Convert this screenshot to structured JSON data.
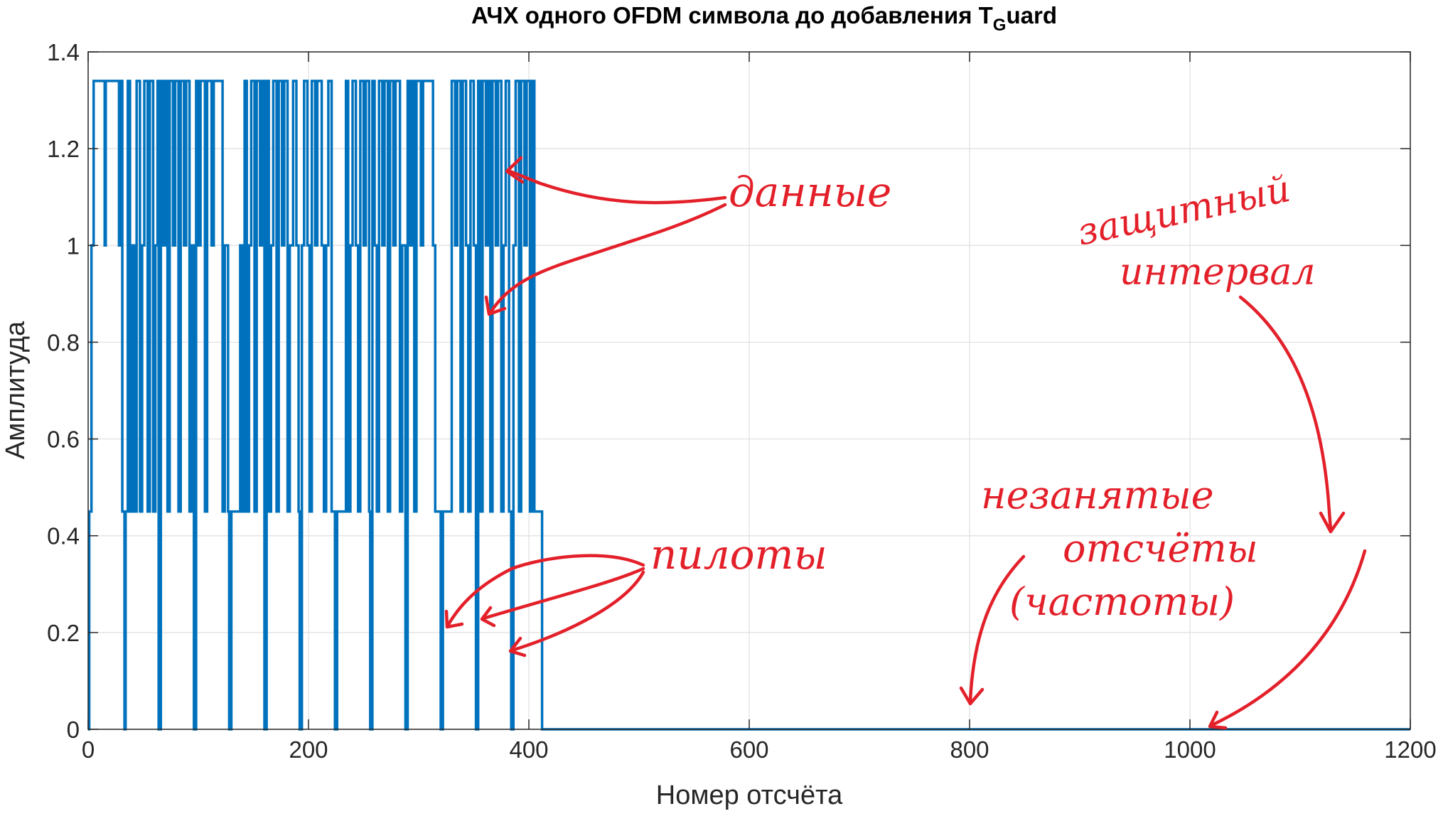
{
  "chart_data": {
    "type": "line",
    "title": "АЧХ одного OFDM символа до добавления T",
    "title_subscript": "G",
    "title_suffix": "uard",
    "xlabel": "Номер отсчёта",
    "ylabel": "Амплитуда",
    "xlim": [
      0,
      1200
    ],
    "ylim": [
      0,
      1.4
    ],
    "xticks": [
      0,
      200,
      400,
      600,
      800,
      1000,
      1200
    ],
    "xtick_labels": [
      "0",
      "200",
      "400",
      "600",
      "800",
      "1000",
      "1200"
    ],
    "yticks": [
      0,
      0.2,
      0.4,
      0.6,
      0.8,
      1.0,
      1.2,
      1.4
    ],
    "ytick_labels": [
      "0",
      "0.2",
      "0.4",
      "0.6",
      "0.8",
      "1",
      "1.2",
      "1.4"
    ],
    "grid": true,
    "line_color": "#0072BD",
    "levels": [
      0,
      0.4472,
      1.0,
      1.3416
    ],
    "active_range": [
      0,
      412
    ],
    "pilot_indices": [
      1,
      33,
      65,
      97,
      129,
      161,
      193,
      225,
      257,
      289,
      321,
      353,
      385
    ],
    "series": [
      {
        "points": [
          [
            0,
            0
          ],
          [
            1,
            0
          ],
          [
            1,
            0.45
          ],
          [
            3,
            0.45
          ],
          [
            3,
            1
          ],
          [
            5,
            1
          ],
          [
            5,
            1.34
          ],
          [
            12,
            1.34
          ],
          [
            12,
            1.34
          ],
          [
            15,
            1.34
          ],
          [
            15,
            1
          ],
          [
            16,
            1
          ],
          [
            16,
            1.34
          ],
          [
            28,
            1.34
          ],
          [
            28,
            1
          ],
          [
            30,
            1
          ],
          [
            30,
            1.34
          ],
          [
            31,
            1.34
          ],
          [
            31,
            0.45
          ],
          [
            33,
            0.45
          ],
          [
            33,
            0
          ],
          [
            34,
            0
          ],
          [
            34,
            0.45
          ],
          [
            36,
            0.45
          ],
          [
            36,
            1.34
          ],
          [
            38,
            1.34
          ],
          [
            38,
            0.45
          ],
          [
            40,
            0.45
          ],
          [
            40,
            1
          ],
          [
            42,
            1
          ],
          [
            42,
            0.45
          ],
          [
            44,
            0.45
          ],
          [
            44,
            1.34
          ],
          [
            47,
            1.34
          ],
          [
            47,
            0.45
          ],
          [
            49,
            0.45
          ],
          [
            49,
            1
          ],
          [
            51,
            1
          ],
          [
            51,
            1.34
          ],
          [
            54,
            1.34
          ],
          [
            54,
            0.45
          ],
          [
            56,
            0.45
          ],
          [
            56,
            1.34
          ],
          [
            59,
            1.34
          ],
          [
            59,
            0.45
          ],
          [
            61,
            0.45
          ],
          [
            61,
            1
          ],
          [
            63,
            1
          ],
          [
            63,
            1.34
          ],
          [
            64,
            1.34
          ],
          [
            64,
            0
          ],
          [
            66,
            0
          ],
          [
            66,
            1.34
          ],
          [
            68,
            1.34
          ],
          [
            68,
            1
          ],
          [
            70,
            1
          ],
          [
            70,
            1.34
          ],
          [
            72,
            1.34
          ],
          [
            72,
            0.45
          ],
          [
            74,
            0.45
          ],
          [
            74,
            1.34
          ],
          [
            77,
            1.34
          ],
          [
            77,
            1
          ],
          [
            79,
            1
          ],
          [
            79,
            1.34
          ],
          [
            82,
            1.34
          ],
          [
            82,
            0.45
          ],
          [
            84,
            0.45
          ],
          [
            84,
            1.34
          ],
          [
            87,
            1.34
          ],
          [
            87,
            1
          ],
          [
            89,
            1
          ],
          [
            89,
            1.34
          ],
          [
            92,
            1.34
          ],
          [
            92,
            0.45
          ],
          [
            94,
            0.45
          ],
          [
            94,
            1
          ],
          [
            96,
            1
          ],
          [
            96,
            0
          ],
          [
            98,
            0
          ],
          [
            98,
            1.34
          ],
          [
            100,
            1.34
          ],
          [
            100,
            1
          ],
          [
            102,
            1
          ],
          [
            102,
            1.34
          ],
          [
            106,
            1.34
          ],
          [
            106,
            0.45
          ],
          [
            108,
            0.45
          ],
          [
            108,
            1.34
          ],
          [
            112,
            1.34
          ],
          [
            112,
            1
          ],
          [
            114,
            1
          ],
          [
            114,
            1.34
          ],
          [
            118,
            1.34
          ],
          [
            118,
            1.34
          ],
          [
            122,
            1.34
          ],
          [
            122,
            0.45
          ],
          [
            124,
            0.45
          ],
          [
            124,
            1
          ],
          [
            127,
            1
          ],
          [
            127,
            0.45
          ],
          [
            128,
            0.45
          ],
          [
            128,
            0
          ],
          [
            130,
            0
          ],
          [
            130,
            0.45
          ],
          [
            138,
            0.45
          ],
          [
            138,
            1
          ],
          [
            140,
            1
          ],
          [
            140,
            0.45
          ],
          [
            142,
            0.45
          ],
          [
            142,
            1.34
          ],
          [
            144,
            1.34
          ],
          [
            144,
            0.45
          ],
          [
            146,
            0.45
          ],
          [
            146,
            1
          ],
          [
            148,
            1
          ],
          [
            148,
            1.34
          ],
          [
            151,
            1.34
          ],
          [
            151,
            0.45
          ],
          [
            153,
            0.45
          ],
          [
            153,
            1.34
          ],
          [
            156,
            1.34
          ],
          [
            156,
            1
          ],
          [
            158,
            1
          ],
          [
            158,
            1.34
          ],
          [
            160,
            1.34
          ],
          [
            160,
            0
          ],
          [
            162,
            0
          ],
          [
            162,
            1.34
          ],
          [
            164,
            1.34
          ],
          [
            164,
            0.45
          ],
          [
            166,
            0.45
          ],
          [
            166,
            1
          ],
          [
            168,
            1
          ],
          [
            168,
            1.34
          ],
          [
            171,
            1.34
          ],
          [
            171,
            0.45
          ],
          [
            173,
            0.45
          ],
          [
            173,
            1.34
          ],
          [
            176,
            1.34
          ],
          [
            176,
            1
          ],
          [
            178,
            1
          ],
          [
            178,
            1.34
          ],
          [
            181,
            1.34
          ],
          [
            181,
            0.45
          ],
          [
            183,
            0.45
          ],
          [
            183,
            1
          ],
          [
            186,
            1
          ],
          [
            186,
            1.34
          ],
          [
            189,
            1.34
          ],
          [
            189,
            1
          ],
          [
            191,
            1
          ],
          [
            191,
            0.45
          ],
          [
            192,
            0.45
          ],
          [
            192,
            0
          ],
          [
            194,
            0
          ],
          [
            194,
            1
          ],
          [
            196,
            1
          ],
          [
            196,
            1.34
          ],
          [
            199,
            1.34
          ],
          [
            199,
            1
          ],
          [
            201,
            1
          ],
          [
            201,
            0.45
          ],
          [
            203,
            0.45
          ],
          [
            203,
            1.34
          ],
          [
            206,
            1.34
          ],
          [
            206,
            1
          ],
          [
            208,
            1
          ],
          [
            208,
            1.34
          ],
          [
            212,
            1.34
          ],
          [
            212,
            1
          ],
          [
            214,
            1
          ],
          [
            214,
            0.45
          ],
          [
            216,
            0.45
          ],
          [
            216,
            1
          ],
          [
            218,
            1
          ],
          [
            218,
            1.34
          ],
          [
            221,
            1.34
          ],
          [
            221,
            0.45
          ],
          [
            224,
            0.45
          ],
          [
            224,
            0
          ],
          [
            226,
            0
          ],
          [
            226,
            0.45
          ],
          [
            234,
            0.45
          ],
          [
            234,
            1.34
          ],
          [
            236,
            1.34
          ],
          [
            236,
            0.45
          ],
          [
            238,
            0.45
          ],
          [
            238,
            1
          ],
          [
            240,
            1
          ],
          [
            240,
            1.34
          ],
          [
            243,
            1.34
          ],
          [
            243,
            1
          ],
          [
            245,
            1
          ],
          [
            245,
            0.45
          ],
          [
            247,
            0.45
          ],
          [
            247,
            1.34
          ],
          [
            250,
            1.34
          ],
          [
            250,
            1
          ],
          [
            252,
            1
          ],
          [
            252,
            1.34
          ],
          [
            255,
            1.34
          ],
          [
            255,
            0.45
          ],
          [
            256,
            0.45
          ],
          [
            256,
            0
          ],
          [
            258,
            0
          ],
          [
            258,
            1.34
          ],
          [
            260,
            1.34
          ],
          [
            260,
            1
          ],
          [
            262,
            1
          ],
          [
            262,
            0.45
          ],
          [
            264,
            0.45
          ],
          [
            264,
            1.34
          ],
          [
            267,
            1.34
          ],
          [
            267,
            1
          ],
          [
            269,
            1
          ],
          [
            269,
            1.34
          ],
          [
            272,
            1.34
          ],
          [
            272,
            0.45
          ],
          [
            274,
            0.45
          ],
          [
            274,
            1.34
          ],
          [
            277,
            1.34
          ],
          [
            277,
            1
          ],
          [
            279,
            1
          ],
          [
            279,
            1.34
          ],
          [
            283,
            1.34
          ],
          [
            283,
            0.45
          ],
          [
            285,
            0.45
          ],
          [
            285,
            1
          ],
          [
            288,
            1
          ],
          [
            288,
            0
          ],
          [
            290,
            0
          ],
          [
            290,
            1.34
          ],
          [
            292,
            1.34
          ],
          [
            292,
            1
          ],
          [
            294,
            1
          ],
          [
            294,
            1.34
          ],
          [
            296,
            1.34
          ],
          [
            296,
            0.45
          ],
          [
            298,
            0.45
          ],
          [
            298,
            1.34
          ],
          [
            302,
            1.34
          ],
          [
            302,
            1
          ],
          [
            304,
            1
          ],
          [
            304,
            1.34
          ],
          [
            313,
            1.34
          ],
          [
            313,
            1
          ],
          [
            315,
            1
          ],
          [
            315,
            0.45
          ],
          [
            320,
            0.45
          ],
          [
            320,
            0
          ],
          [
            322,
            0
          ],
          [
            322,
            0.45
          ],
          [
            330,
            0.45
          ],
          [
            330,
            1.34
          ],
          [
            333,
            1.34
          ],
          [
            333,
            1
          ],
          [
            335,
            1
          ],
          [
            335,
            1.34
          ],
          [
            338,
            1.34
          ],
          [
            338,
            0.45
          ],
          [
            340,
            0.45
          ],
          [
            340,
            1.34
          ],
          [
            343,
            1.34
          ],
          [
            343,
            1
          ],
          [
            345,
            1
          ],
          [
            345,
            0.45
          ],
          [
            347,
            0.45
          ],
          [
            347,
            1.34
          ],
          [
            350,
            1.34
          ],
          [
            350,
            1
          ],
          [
            352,
            1
          ],
          [
            352,
            0
          ],
          [
            354,
            0
          ],
          [
            354,
            1.34
          ],
          [
            356,
            1.34
          ],
          [
            356,
            0.45
          ],
          [
            358,
            0.45
          ],
          [
            358,
            1.34
          ],
          [
            361,
            1.34
          ],
          [
            361,
            1
          ],
          [
            363,
            1
          ],
          [
            363,
            1.34
          ],
          [
            365,
            1.34
          ],
          [
            365,
            0.45
          ],
          [
            367,
            0.45
          ],
          [
            367,
            1.34
          ],
          [
            370,
            1.34
          ],
          [
            370,
            1
          ],
          [
            372,
            1
          ],
          [
            372,
            1.34
          ],
          [
            375,
            1.34
          ],
          [
            375,
            0.45
          ],
          [
            377,
            0.45
          ],
          [
            377,
            1
          ],
          [
            379,
            1
          ],
          [
            379,
            1.34
          ],
          [
            382,
            1.34
          ],
          [
            382,
            0.45
          ],
          [
            384,
            0.45
          ],
          [
            384,
            0
          ],
          [
            386,
            0
          ],
          [
            386,
            1
          ],
          [
            388,
            1
          ],
          [
            388,
            1.34
          ],
          [
            391,
            1.34
          ],
          [
            391,
            0.45
          ],
          [
            393,
            0.45
          ],
          [
            393,
            1.34
          ],
          [
            396,
            1.34
          ],
          [
            396,
            1
          ],
          [
            398,
            1
          ],
          [
            398,
            1.34
          ],
          [
            401,
            1.34
          ],
          [
            401,
            0.45
          ],
          [
            403,
            0.45
          ],
          [
            403,
            1.34
          ],
          [
            405,
            1.34
          ],
          [
            405,
            0.45
          ],
          [
            412,
            0.45
          ],
          [
            412,
            0
          ],
          [
            1200,
            0
          ]
        ]
      }
    ]
  },
  "annotations": {
    "data": "данные",
    "pilots": "пилоты",
    "unused": [
      "незанятые",
      "отсчёты",
      "(частоты)"
    ],
    "guard": [
      "защитный",
      "интервал"
    ],
    "color": "#e3202a"
  }
}
